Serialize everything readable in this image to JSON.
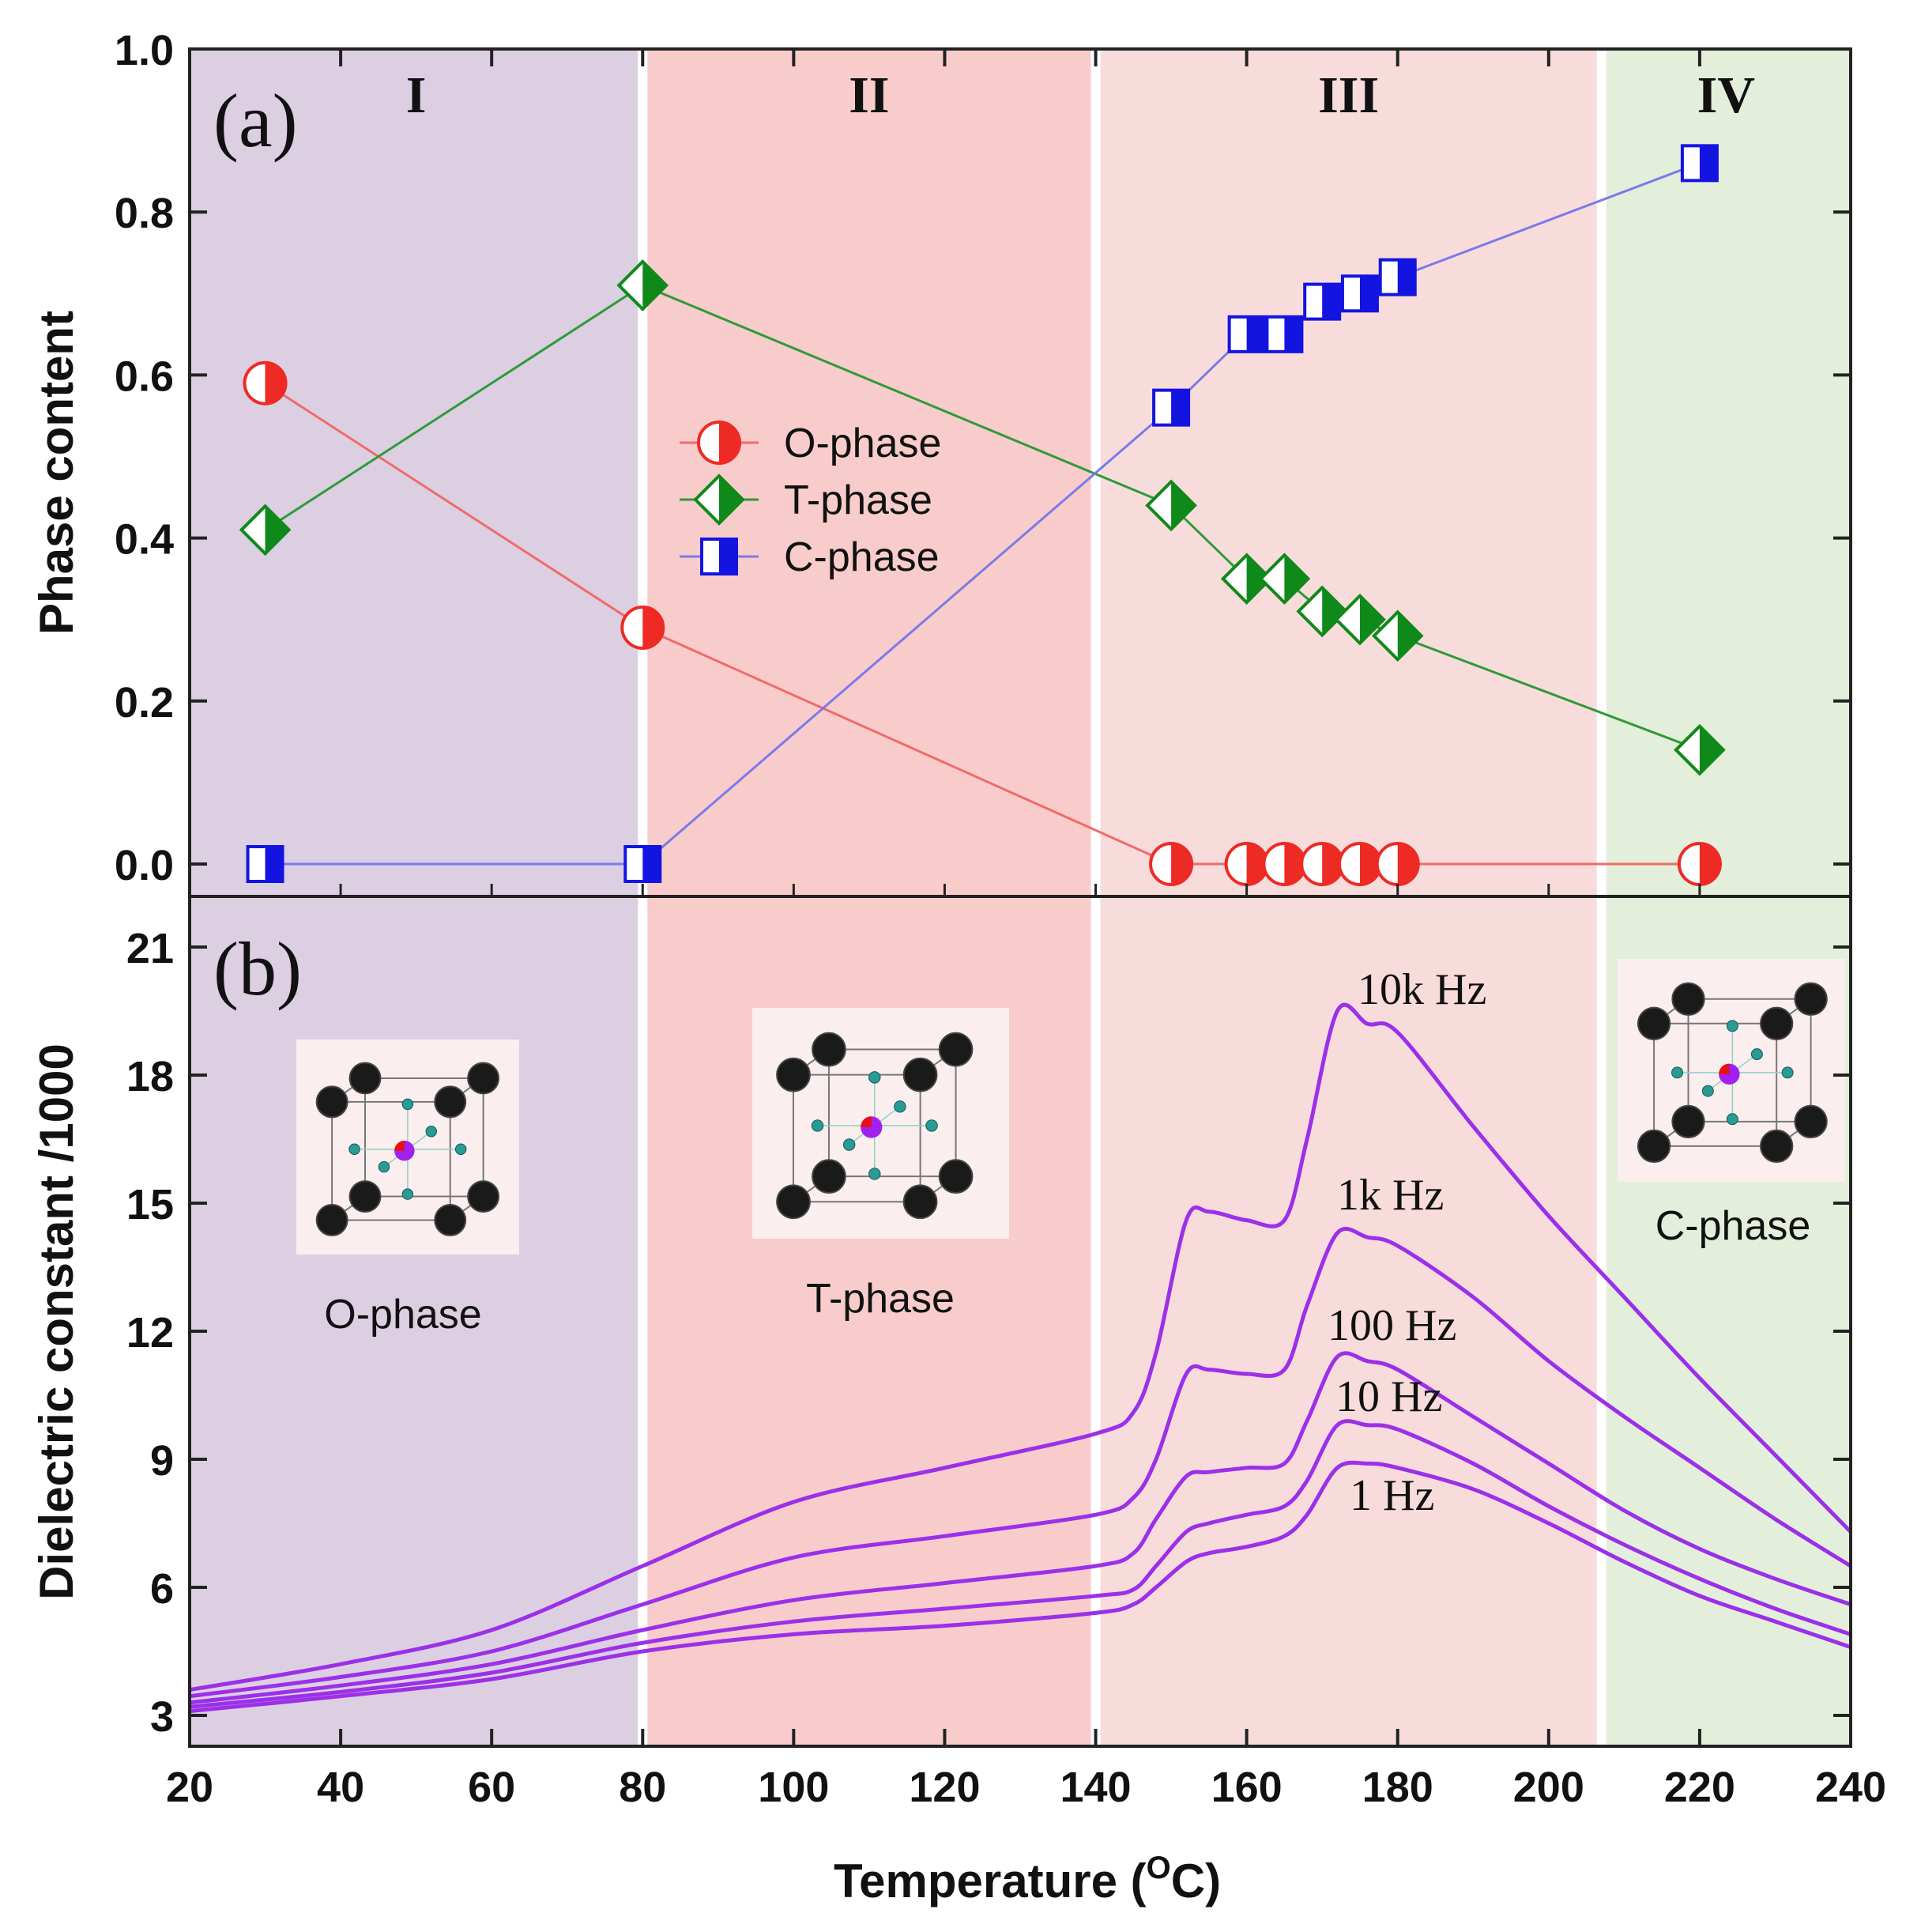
{
  "chart_data": [
    {
      "panel": "(a)",
      "type": "line",
      "xlabel": "Temperature (°C)",
      "ylabel": "Phase content",
      "xlim": [
        20,
        240
      ],
      "ylim": [
        0,
        1.0
      ],
      "x_ticks": [
        "20",
        "40",
        "60",
        "80",
        "100",
        "120",
        "140",
        "160",
        "180",
        "200",
        "220",
        "240"
      ],
      "y_ticks": [
        "0.0",
        "0.2",
        "0.4",
        "0.6",
        "0.8",
        "1.0"
      ],
      "regions": [
        {
          "label": "I",
          "from": 20,
          "to": 80,
          "color": "#dccfe2"
        },
        {
          "label": "II",
          "from": 80,
          "to": 140,
          "color": "#f8cccb"
        },
        {
          "label": "III",
          "from": 140,
          "to": 207,
          "color": "#f8dcdc"
        },
        {
          "label": "IV",
          "from": 207,
          "to": 240,
          "color": "#e3efda"
        }
      ],
      "series": [
        {
          "name": "O-phase",
          "color": "#ee2a24",
          "line_color": "#f06a6a",
          "marker": "circle",
          "x": [
            30,
            80,
            150,
            160,
            165,
            170,
            175,
            180,
            220
          ],
          "y": [
            0.59,
            0.29,
            0.0,
            0.0,
            0.0,
            0.0,
            0.0,
            0.0,
            0.0
          ]
        },
        {
          "name": "T-phase",
          "color": "#0f8a1a",
          "line_color": "#2e9a3a",
          "marker": "diamond",
          "x": [
            30,
            80,
            150,
            160,
            165,
            170,
            175,
            180,
            220
          ],
          "y": [
            0.41,
            0.71,
            0.44,
            0.35,
            0.35,
            0.31,
            0.3,
            0.28,
            0.14
          ]
        },
        {
          "name": "C-phase",
          "color": "#1414e0",
          "line_color": "#7a7ae8",
          "marker": "square",
          "x": [
            30,
            80,
            150,
            160,
            165,
            170,
            175,
            180,
            220
          ],
          "y": [
            0.0,
            0.0,
            0.56,
            0.65,
            0.65,
            0.69,
            0.7,
            0.72,
            0.86
          ]
        }
      ],
      "legend": [
        "O-phase",
        "T-phase",
        "C-phase"
      ]
    },
    {
      "panel": "(b)",
      "type": "line",
      "xlabel": "Temperature (°C)",
      "ylabel": "Dielectric constant /1000",
      "xlim": [
        20,
        240
      ],
      "ylim": [
        2,
        22
      ],
      "y_ticks": [
        "3",
        "6",
        "9",
        "12",
        "15",
        "18",
        "21"
      ],
      "line_color": "#9b30e8",
      "x": [
        20,
        40,
        60,
        80,
        100,
        120,
        140,
        145,
        148,
        152,
        155,
        160,
        165,
        168,
        172,
        176,
        180,
        190,
        200,
        210,
        220,
        230,
        240
      ],
      "series": [
        {
          "name": "10k Hz",
          "values": [
            3.6,
            4.2,
            5.0,
            6.5,
            8.0,
            8.8,
            9.6,
            10.1,
            11.5,
            14.6,
            14.8,
            14.6,
            14.6,
            16.5,
            19.5,
            19.2,
            19.0,
            16.8,
            14.7,
            12.8,
            10.9,
            9.1,
            7.3
          ]
        },
        {
          "name": "1k Hz",
          "values": [
            3.45,
            3.9,
            4.5,
            5.6,
            6.7,
            7.2,
            7.7,
            8.1,
            9.0,
            11.0,
            11.1,
            11.0,
            11.1,
            12.6,
            14.3,
            14.2,
            14.0,
            12.8,
            11.3,
            10.0,
            8.8,
            7.6,
            6.5
          ]
        },
        {
          "name": "100 Hz",
          "values": [
            3.3,
            3.7,
            4.2,
            5.0,
            5.7,
            6.1,
            6.5,
            6.8,
            7.6,
            8.6,
            8.7,
            8.8,
            8.9,
            9.9,
            11.4,
            11.3,
            11.1,
            10.0,
            8.9,
            7.8,
            6.9,
            6.2,
            5.6
          ]
        },
        {
          "name": "10 Hz",
          "values": [
            3.2,
            3.55,
            4.0,
            4.7,
            5.2,
            5.5,
            5.8,
            5.95,
            6.5,
            7.3,
            7.5,
            7.7,
            7.9,
            8.5,
            9.8,
            9.8,
            9.7,
            8.9,
            7.9,
            7.0,
            6.2,
            5.5,
            4.9
          ]
        },
        {
          "name": "1 Hz",
          "values": [
            3.1,
            3.45,
            3.85,
            4.5,
            4.9,
            5.1,
            5.4,
            5.6,
            6.0,
            6.6,
            6.8,
            6.95,
            7.2,
            7.7,
            8.8,
            8.9,
            8.8,
            8.3,
            7.5,
            6.6,
            5.8,
            5.2,
            4.6
          ]
        }
      ],
      "curve_labels": [
        "10k Hz",
        "1k Hz",
        "100 Hz",
        "10 Hz",
        "1 Hz"
      ],
      "phase_captions": [
        "O-phase",
        "T-phase",
        "C-phase"
      ]
    }
  ],
  "x_axis_title_main": "Temperature (",
  "x_axis_title_sup": "O",
  "x_axis_title_end": "C)"
}
